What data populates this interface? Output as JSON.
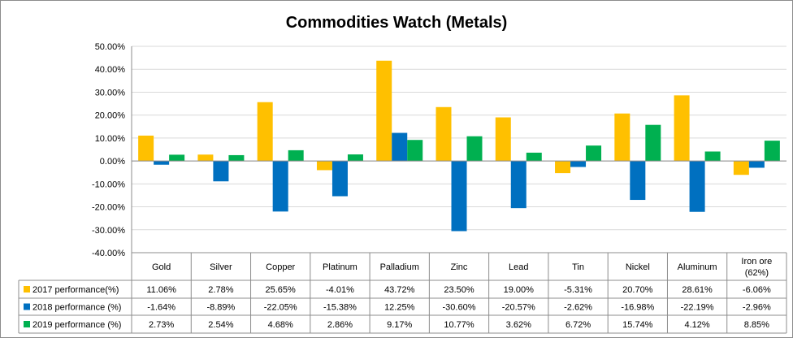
{
  "chart_data": {
    "type": "bar",
    "title": "Commodities Watch (Metals)",
    "categories": [
      "Gold",
      "Silver",
      "Copper",
      "Platinum",
      "Palladium",
      "Zinc",
      "Lead",
      "Tin",
      "Nickel",
      "Aluminum",
      "Iron ore (62%)"
    ],
    "category_lines": [
      [
        "Gold"
      ],
      [
        "Silver"
      ],
      [
        "Copper"
      ],
      [
        "Platinum"
      ],
      [
        "Palladium"
      ],
      [
        "Zinc"
      ],
      [
        "Lead"
      ],
      [
        "Tin"
      ],
      [
        "Nickel"
      ],
      [
        "Aluminum"
      ],
      [
        "Iron ore",
        "(62%)"
      ]
    ],
    "series": [
      {
        "name": "2017 performance(%)",
        "color": "#ffc000",
        "values": [
          11.06,
          2.78,
          25.65,
          -4.01,
          43.72,
          23.5,
          19.0,
          -5.31,
          20.7,
          28.61,
          -6.06
        ],
        "labels": [
          "11.06%",
          "2.78%",
          "25.65%",
          "-4.01%",
          "43.72%",
          "23.50%",
          "19.00%",
          "-5.31%",
          "20.70%",
          "28.61%",
          "-6.06%"
        ]
      },
      {
        "name": "2018 performance (%)",
        "color": "#0070c0",
        "values": [
          -1.64,
          -8.89,
          -22.05,
          -15.38,
          12.25,
          -30.6,
          -20.57,
          -2.62,
          -16.98,
          -22.19,
          -2.96
        ],
        "labels": [
          "-1.64%",
          "-8.89%",
          "-22.05%",
          "-15.38%",
          "12.25%",
          "-30.60%",
          "-20.57%",
          "-2.62%",
          "-16.98%",
          "-22.19%",
          "-2.96%"
        ]
      },
      {
        "name": "2019 performance (%)",
        "color": "#00b050",
        "values": [
          2.73,
          2.54,
          4.68,
          2.86,
          9.17,
          10.77,
          3.62,
          6.72,
          15.74,
          4.12,
          8.85
        ],
        "labels": [
          "2.73%",
          "2.54%",
          "4.68%",
          "2.86%",
          "9.17%",
          "10.77%",
          "3.62%",
          "6.72%",
          "15.74%",
          "4.12%",
          "8.85%"
        ]
      }
    ],
    "ylim": [
      -40,
      50
    ],
    "yticks": [
      50,
      40,
      30,
      20,
      10,
      0,
      -10,
      -20,
      -30,
      -40
    ],
    "ytick_labels": [
      "50.00%",
      "40.00%",
      "30.00%",
      "20.00%",
      "10.00%",
      "0.00%",
      "-10.00%",
      "-20.00%",
      "-30.00%",
      "-40.00%"
    ],
    "grid": true,
    "legend": "data-table"
  }
}
